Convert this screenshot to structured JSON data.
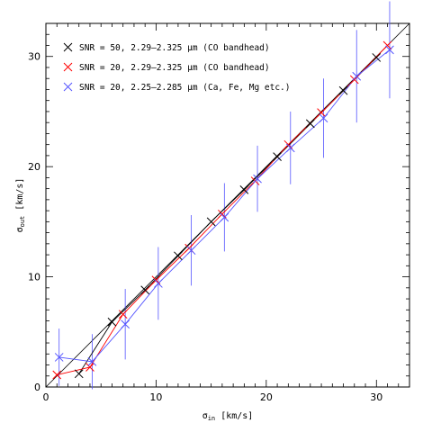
{
  "chart_data": {
    "type": "line",
    "xlabel": "σ",
    "xlabel_sub": "in",
    "xlabel_unit": "[km/s]",
    "ylabel": "σ",
    "ylabel_sub": "out",
    "ylabel_unit": "[km/s]",
    "xlim": [
      0,
      33
    ],
    "ylim": [
      0,
      33
    ],
    "x_ticks": [
      0,
      10,
      20,
      30
    ],
    "y_ticks": [
      0,
      10,
      20,
      30
    ],
    "x_tick_labels": [
      "0",
      "10",
      "20",
      "30"
    ],
    "y_tick_labels": [
      "0",
      "10",
      "20",
      "30"
    ],
    "grid": false,
    "legend_position": "top-left",
    "reference_line": {
      "x": [
        0,
        33
      ],
      "y": [
        0,
        33
      ],
      "color": "#000000"
    },
    "series": [
      {
        "name": "SNR = 50, 2.29–2.325 μm (CO bandhead)",
        "color": "#000000",
        "x": [
          3,
          6,
          9,
          12,
          15,
          18,
          21,
          24,
          27,
          30
        ],
        "y": [
          1.2,
          5.9,
          8.8,
          11.9,
          15.0,
          17.9,
          20.9,
          23.9,
          26.9,
          29.9
        ],
        "err": [
          0,
          0,
          0,
          0,
          0,
          0,
          0,
          0,
          0,
          0
        ]
      },
      {
        "name": "SNR = 20, 2.29–2.325 μm (CO bandhead)",
        "color": "#ff0000",
        "x": [
          1,
          4,
          7,
          10,
          13,
          16,
          19,
          22,
          25,
          28,
          31
        ],
        "y": [
          1.1,
          1.8,
          6.6,
          9.7,
          12.6,
          15.7,
          18.7,
          22.0,
          24.9,
          27.9,
          31.0
        ],
        "err": [
          0,
          0,
          0,
          0,
          0,
          0,
          0,
          0,
          0,
          0,
          0
        ]
      },
      {
        "name": "SNR = 20, 2.25–2.285 μm (Ca, Fe, Mg etc.)",
        "color": "#5555ff",
        "x": [
          1.2,
          4.2,
          7.2,
          10.2,
          13.2,
          16.2,
          19.2,
          22.2,
          25.2,
          28.2,
          31.2
        ],
        "y": [
          2.7,
          2.3,
          5.7,
          9.4,
          12.4,
          15.4,
          18.9,
          21.7,
          24.4,
          28.2,
          30.6
        ],
        "err": [
          2.6,
          2.5,
          3.2,
          3.3,
          3.2,
          3.1,
          3.0,
          3.3,
          3.6,
          4.2,
          4.4
        ]
      }
    ]
  }
}
